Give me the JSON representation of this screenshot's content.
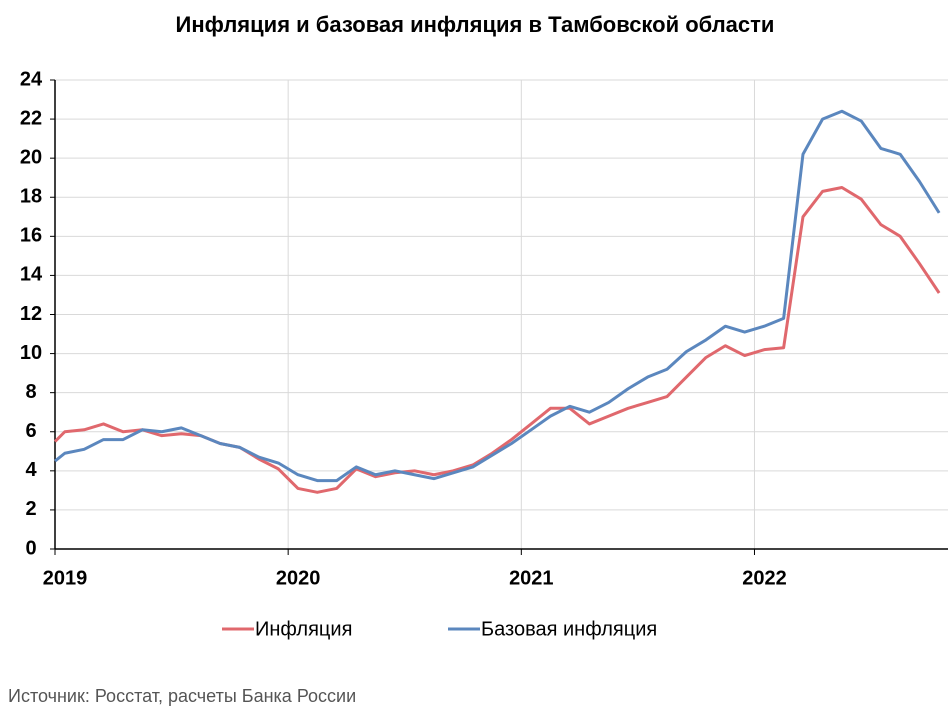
{
  "chart_data": {
    "type": "line",
    "title": "Инфляция и базовая инфляция в Тамбовской области",
    "source": "Источник: Росстат, расчеты Банка России",
    "x": [
      2019,
      2019.042,
      2019.125,
      2019.208,
      2019.292,
      2019.375,
      2019.458,
      2019.542,
      2019.625,
      2019.708,
      2019.792,
      2019.875,
      2019.958,
      2020.042,
      2020.125,
      2020.208,
      2020.292,
      2020.375,
      2020.458,
      2020.542,
      2020.625,
      2020.708,
      2020.792,
      2020.875,
      2020.958,
      2021.042,
      2021.125,
      2021.208,
      2021.292,
      2021.375,
      2021.458,
      2021.542,
      2021.625,
      2021.708,
      2021.792,
      2021.875,
      2021.958,
      2022.042,
      2022.125,
      2022.208,
      2022.292,
      2022.375,
      2022.458,
      2022.542,
      2022.625,
      2022.708,
      2022.792
    ],
    "series": [
      {
        "name": "Инфляция",
        "color": "#e0686d",
        "values": [
          5.5,
          6.0,
          6.1,
          6.4,
          6.0,
          6.1,
          5.8,
          5.9,
          5.8,
          5.4,
          5.2,
          4.6,
          4.1,
          3.1,
          2.9,
          3.1,
          4.1,
          3.7,
          3.9,
          4.0,
          3.8,
          4.0,
          4.3,
          4.9,
          5.6,
          6.4,
          7.2,
          7.2,
          6.4,
          6.8,
          7.2,
          7.5,
          7.8,
          8.8,
          9.8,
          10.4,
          9.9,
          10.2,
          10.3,
          17.0,
          18.3,
          18.5,
          17.9,
          16.6,
          16.0,
          14.6,
          13.1
        ]
      },
      {
        "name": "Базовая инфляция",
        "color": "#5b87be",
        "values": [
          4.5,
          4.9,
          5.1,
          5.6,
          5.6,
          6.1,
          6.0,
          6.2,
          5.8,
          5.4,
          5.2,
          4.7,
          4.4,
          3.8,
          3.5,
          3.5,
          4.2,
          3.8,
          4.0,
          3.8,
          3.6,
          3.9,
          4.2,
          4.8,
          5.4,
          6.1,
          6.8,
          7.3,
          7.0,
          7.5,
          8.2,
          8.8,
          9.2,
          10.1,
          10.7,
          11.4,
          11.1,
          11.4,
          11.8,
          20.2,
          22.0,
          22.4,
          21.9,
          20.5,
          20.2,
          18.8,
          17.2
        ]
      }
    ],
    "xlim": [
      2019,
      2022.83
    ],
    "xticks": [
      2019,
      2020,
      2021,
      2022
    ],
    "ylim": [
      0,
      24
    ],
    "yticks": [
      0,
      2,
      4,
      6,
      8,
      10,
      12,
      14,
      16,
      18,
      20,
      22,
      24
    ],
    "grid": true
  }
}
